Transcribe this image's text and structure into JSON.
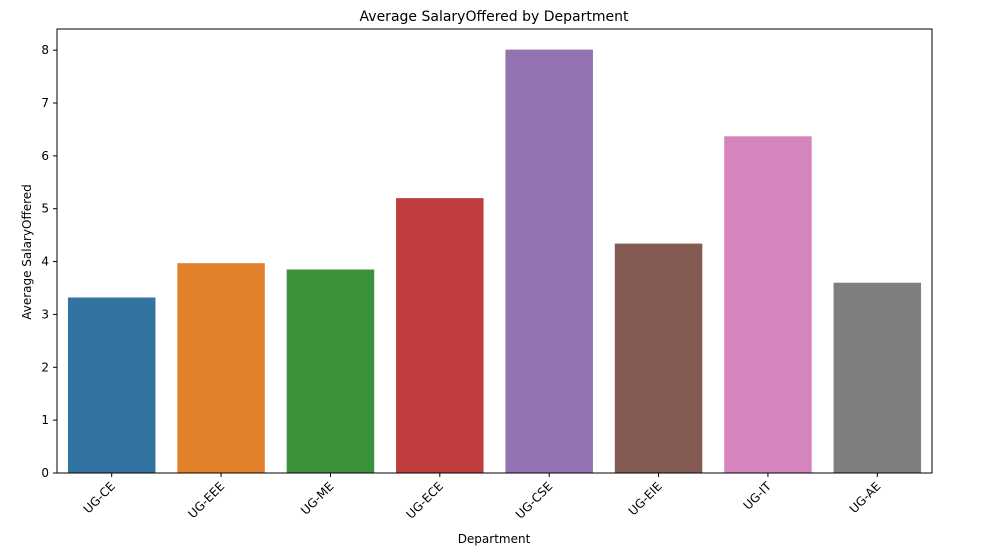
{
  "chart_data": {
    "type": "bar",
    "title": "Average SalaryOffered by Department",
    "xlabel": "Department",
    "ylabel": "Average SalaryOffered",
    "categories": [
      "UG-CE",
      "UG-EEE",
      "UG-ME",
      "UG-ECE",
      "UG-CSE",
      "UG-EIE",
      "UG-IT",
      "UG-AE"
    ],
    "values": [
      3.32,
      3.97,
      3.85,
      5.2,
      8.01,
      4.34,
      6.37,
      3.6
    ],
    "colors": [
      "#3274a1",
      "#e1812c",
      "#3a923a",
      "#c03d3e",
      "#9372b2",
      "#845b53",
      "#d684bd",
      "#7f7f7f"
    ],
    "ylim": [
      0,
      8.4
    ],
    "yticks": [
      0,
      1,
      2,
      3,
      4,
      5,
      6,
      7,
      8
    ],
    "grid": false,
    "legend": "none"
  }
}
